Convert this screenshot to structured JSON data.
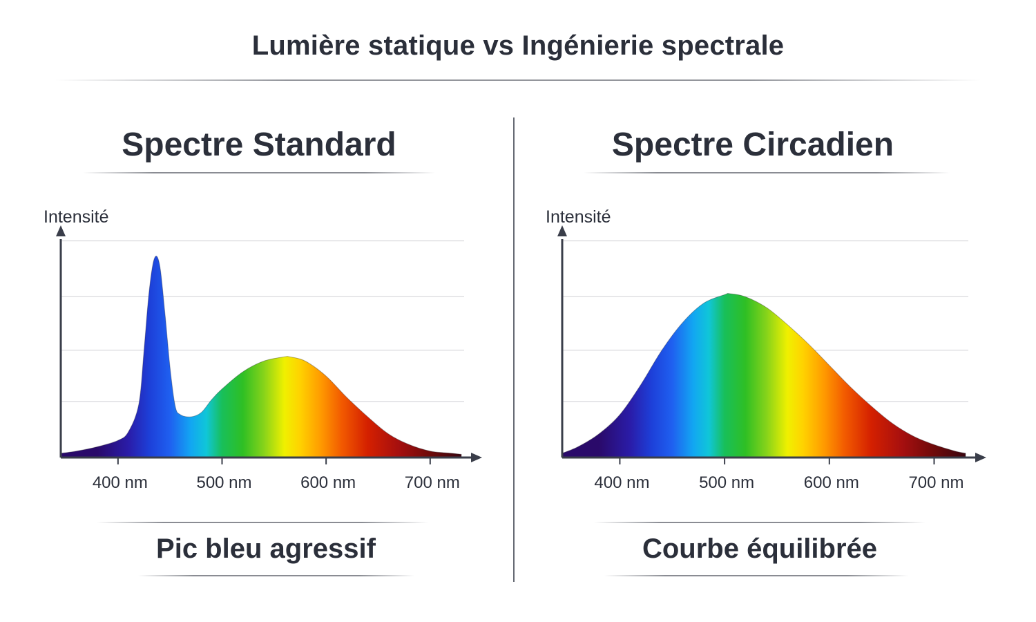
{
  "title": "Lumière statique vs Ingénierie spectrale",
  "panels": [
    {
      "title": "Spectre Standard",
      "caption": "Pic bleu agressif"
    },
    {
      "title": "Spectre Circadien",
      "caption": "Courbe équilibrée"
    }
  ],
  "colors": {
    "text": "#2b2f3a",
    "axis": "#3a3e4a",
    "grid": "#d8d8dc"
  },
  "chart_data": [
    {
      "type": "area",
      "title": "Spectre Standard",
      "ylabel": "Intensité",
      "xlabel": "",
      "x_unit": "nm",
      "xlim": [
        345,
        730
      ],
      "ylim": [
        0,
        1
      ],
      "grid": true,
      "x_ticks": [
        400,
        500,
        600,
        700
      ],
      "tick_labels": [
        "400 nm",
        "500 nm",
        "600 nm",
        "700 nm"
      ],
      "x": [
        345,
        360,
        380,
        400,
        410,
        420,
        425,
        430,
        435,
        440,
        445,
        450,
        455,
        460,
        470,
        480,
        490,
        500,
        520,
        540,
        560,
        565,
        580,
        600,
        620,
        640,
        660,
        680,
        700,
        720,
        730
      ],
      "values": [
        0.02,
        0.03,
        0.05,
        0.08,
        0.12,
        0.25,
        0.5,
        0.78,
        0.93,
        0.9,
        0.68,
        0.42,
        0.24,
        0.2,
        0.19,
        0.21,
        0.27,
        0.32,
        0.4,
        0.45,
        0.47,
        0.47,
        0.45,
        0.38,
        0.28,
        0.19,
        0.11,
        0.06,
        0.03,
        0.02,
        0.015
      ]
    },
    {
      "type": "area",
      "title": "Spectre Circadien",
      "ylabel": "Intensité",
      "xlabel": "",
      "x_unit": "nm",
      "xlim": [
        345,
        730
      ],
      "ylim": [
        0,
        1
      ],
      "grid": true,
      "x_ticks": [
        400,
        500,
        600,
        700
      ],
      "tick_labels": [
        "400 nm",
        "500 nm",
        "600 nm",
        "700 nm"
      ],
      "x": [
        345,
        360,
        380,
        400,
        420,
        440,
        460,
        480,
        500,
        505,
        520,
        540,
        560,
        580,
        600,
        620,
        640,
        660,
        680,
        700,
        720,
        730
      ],
      "values": [
        0.02,
        0.05,
        0.11,
        0.2,
        0.34,
        0.5,
        0.63,
        0.72,
        0.76,
        0.765,
        0.75,
        0.7,
        0.62,
        0.53,
        0.43,
        0.33,
        0.24,
        0.16,
        0.1,
        0.06,
        0.03,
        0.02
      ]
    }
  ]
}
